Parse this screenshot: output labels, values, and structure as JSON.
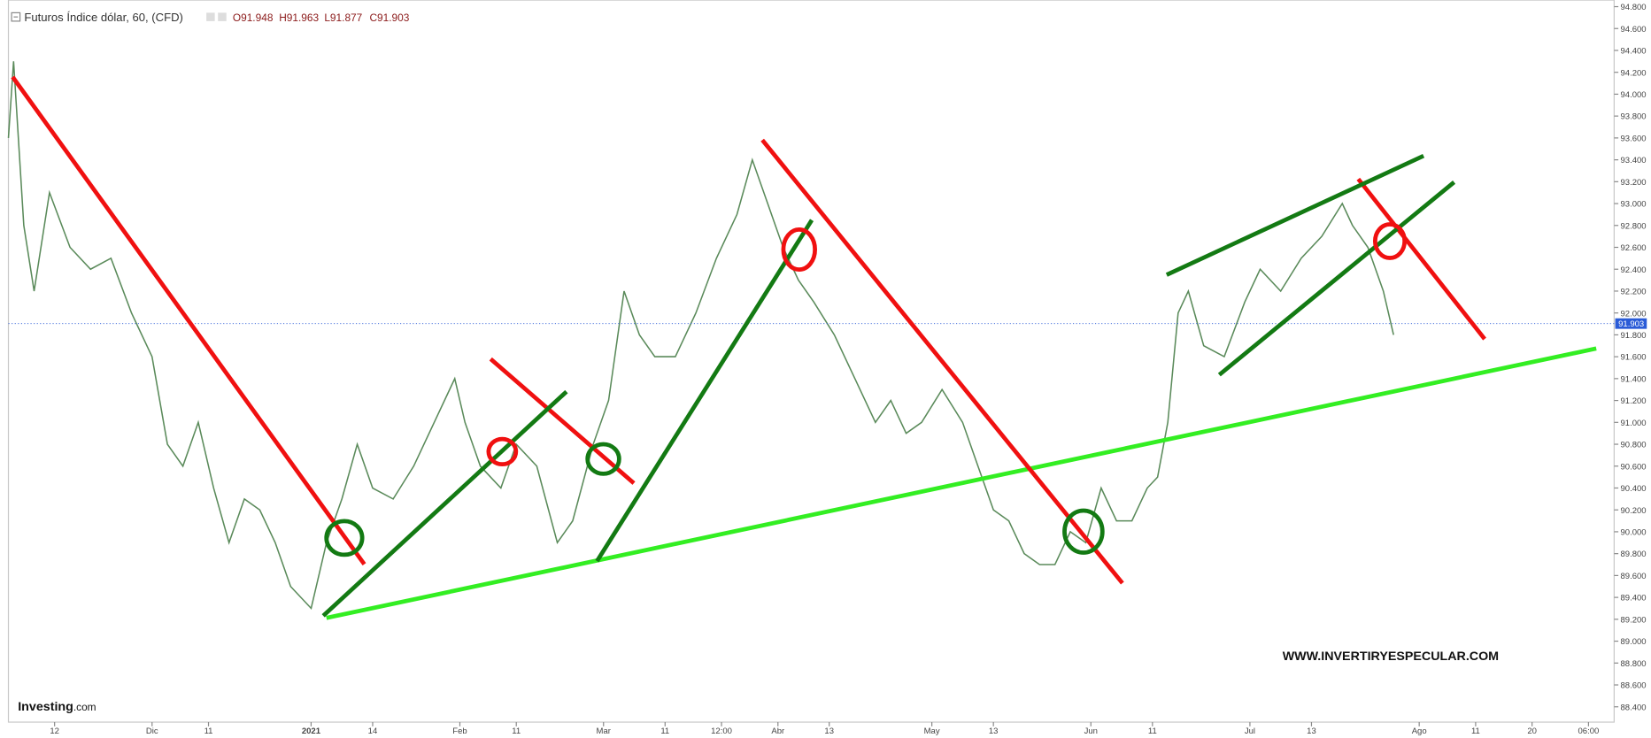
{
  "chart_data": {
    "type": "line",
    "title": "Futuros Índice dólar, 60, (CFD)",
    "ohlc": [
      "O91.948",
      "H91.963",
      "L91.877",
      "C91.903"
    ],
    "watermark": "WWW.INVERTIRYESPECULAR.COM",
    "brand": [
      "Investing",
      ".com"
    ],
    "color": "#5a8a5a",
    "last_price": 91.903,
    "x": [
      0,
      1,
      3,
      5,
      8,
      12,
      16,
      20,
      24,
      28,
      31,
      34,
      37,
      40,
      43,
      46,
      49,
      52,
      55,
      59,
      62,
      65,
      68,
      71,
      75,
      79,
      83,
      87,
      89,
      92,
      96,
      99,
      103,
      107,
      110,
      114,
      117,
      120,
      123,
      126,
      130,
      134,
      138,
      142,
      145,
      148,
      151,
      154,
      157,
      161,
      165,
      169,
      172,
      175,
      178,
      182,
      186,
      189,
      192,
      195,
      198,
      201,
      204,
      207,
      210,
      213,
      216,
      219,
      222,
      224,
      226,
      228,
      230,
      233,
      237,
      241,
      244,
      248,
      252,
      256,
      260,
      262,
      265,
      268,
      270
    ],
    "values": [
      93.6,
      94.3,
      92.8,
      92.2,
      93.1,
      92.6,
      92.4,
      92.5,
      92.0,
      91.6,
      90.8,
      90.6,
      91.0,
      90.4,
      89.9,
      90.3,
      90.2,
      89.9,
      89.5,
      89.3,
      89.9,
      90.3,
      90.8,
      90.4,
      90.3,
      90.6,
      91.0,
      91.4,
      91.0,
      90.6,
      90.4,
      90.8,
      90.6,
      89.9,
      90.1,
      90.8,
      91.2,
      92.2,
      91.8,
      91.6,
      91.6,
      92.0,
      92.5,
      92.9,
      93.4,
      93.0,
      92.6,
      92.3,
      92.1,
      91.8,
      91.4,
      91.0,
      91.2,
      90.9,
      91.0,
      91.3,
      91.0,
      90.6,
      90.2,
      90.1,
      89.8,
      89.7,
      89.7,
      90.0,
      89.9,
      90.4,
      90.1,
      90.1,
      90.4,
      90.5,
      91.0,
      92.0,
      92.2,
      91.7,
      91.6,
      92.1,
      92.4,
      92.2,
      92.5,
      92.7,
      93.0,
      92.8,
      92.6,
      92.2,
      91.8
    ],
    "xlim": [
      0,
      313
    ],
    "xticks": [
      {
        "value": 9,
        "label": "12"
      },
      {
        "value": 28,
        "label": "Dic"
      },
      {
        "value": 39,
        "label": "11"
      },
      {
        "value": 59,
        "label": "2021"
      },
      {
        "value": 71,
        "label": "14"
      },
      {
        "value": 88,
        "label": "Feb"
      },
      {
        "value": 99,
        "label": "11"
      },
      {
        "value": 116,
        "label": "Mar"
      },
      {
        "value": 128,
        "label": "11"
      },
      {
        "value": 139,
        "label": "12:00"
      },
      {
        "value": 150,
        "label": "Abr"
      },
      {
        "value": 160,
        "label": "13"
      },
      {
        "value": 180,
        "label": "May"
      },
      {
        "value": 192,
        "label": "13"
      },
      {
        "value": 211,
        "label": "Jun"
      },
      {
        "value": 223,
        "label": "11"
      },
      {
        "value": 242,
        "label": "Jul"
      },
      {
        "value": 254,
        "label": "13"
      },
      {
        "value": 275,
        "label": "Ago"
      },
      {
        "value": 286,
        "label": "11"
      },
      {
        "value": 297,
        "label": "20"
      },
      {
        "value": 308,
        "label": "06:00"
      }
    ],
    "ylim": [
      88.26,
      94.86
    ],
    "yticks": [
      {
        "value": 88.4,
        "label": "88.400"
      },
      {
        "value": 88.6,
        "label": "88.600"
      },
      {
        "value": 88.8,
        "label": "88.800"
      },
      {
        "value": 89.0,
        "label": "89.000"
      },
      {
        "value": 89.2,
        "label": "89.200"
      },
      {
        "value": 89.4,
        "label": "89.400"
      },
      {
        "value": 89.6,
        "label": "89.600"
      },
      {
        "value": 89.8,
        "label": "89.800"
      },
      {
        "value": 90.0,
        "label": "90.000"
      },
      {
        "value": 90.2,
        "label": "90.200"
      },
      {
        "value": 90.4,
        "label": "90.400"
      },
      {
        "value": 90.6,
        "label": "90.600"
      },
      {
        "value": 90.8,
        "label": "90.800"
      },
      {
        "value": 91.0,
        "label": "91.000"
      },
      {
        "value": 91.2,
        "label": "91.200"
      },
      {
        "value": 91.4,
        "label": "91.400"
      },
      {
        "value": 91.6,
        "label": "91.600"
      },
      {
        "value": 91.8,
        "label": "91.800"
      },
      {
        "value": 92.0,
        "label": "92.000"
      },
      {
        "value": 92.2,
        "label": "92.200"
      },
      {
        "value": 92.4,
        "label": "92.400"
      },
      {
        "value": 92.6,
        "label": "92.600"
      },
      {
        "value": 92.8,
        "label": "92.800"
      },
      {
        "value": 93.0,
        "label": "93.000"
      },
      {
        "value": 93.2,
        "label": "93.200"
      },
      {
        "value": 93.4,
        "label": "93.400"
      },
      {
        "value": 93.6,
        "label": "93.600"
      },
      {
        "value": 93.8,
        "label": "93.800"
      },
      {
        "value": 94.0,
        "label": "94.000"
      },
      {
        "value": 94.2,
        "label": "94.200"
      },
      {
        "value": 94.4,
        "label": "94.400"
      },
      {
        "value": 94.6,
        "label": "94.600"
      },
      {
        "value": 94.8,
        "label": "94.800"
      }
    ]
  }
}
